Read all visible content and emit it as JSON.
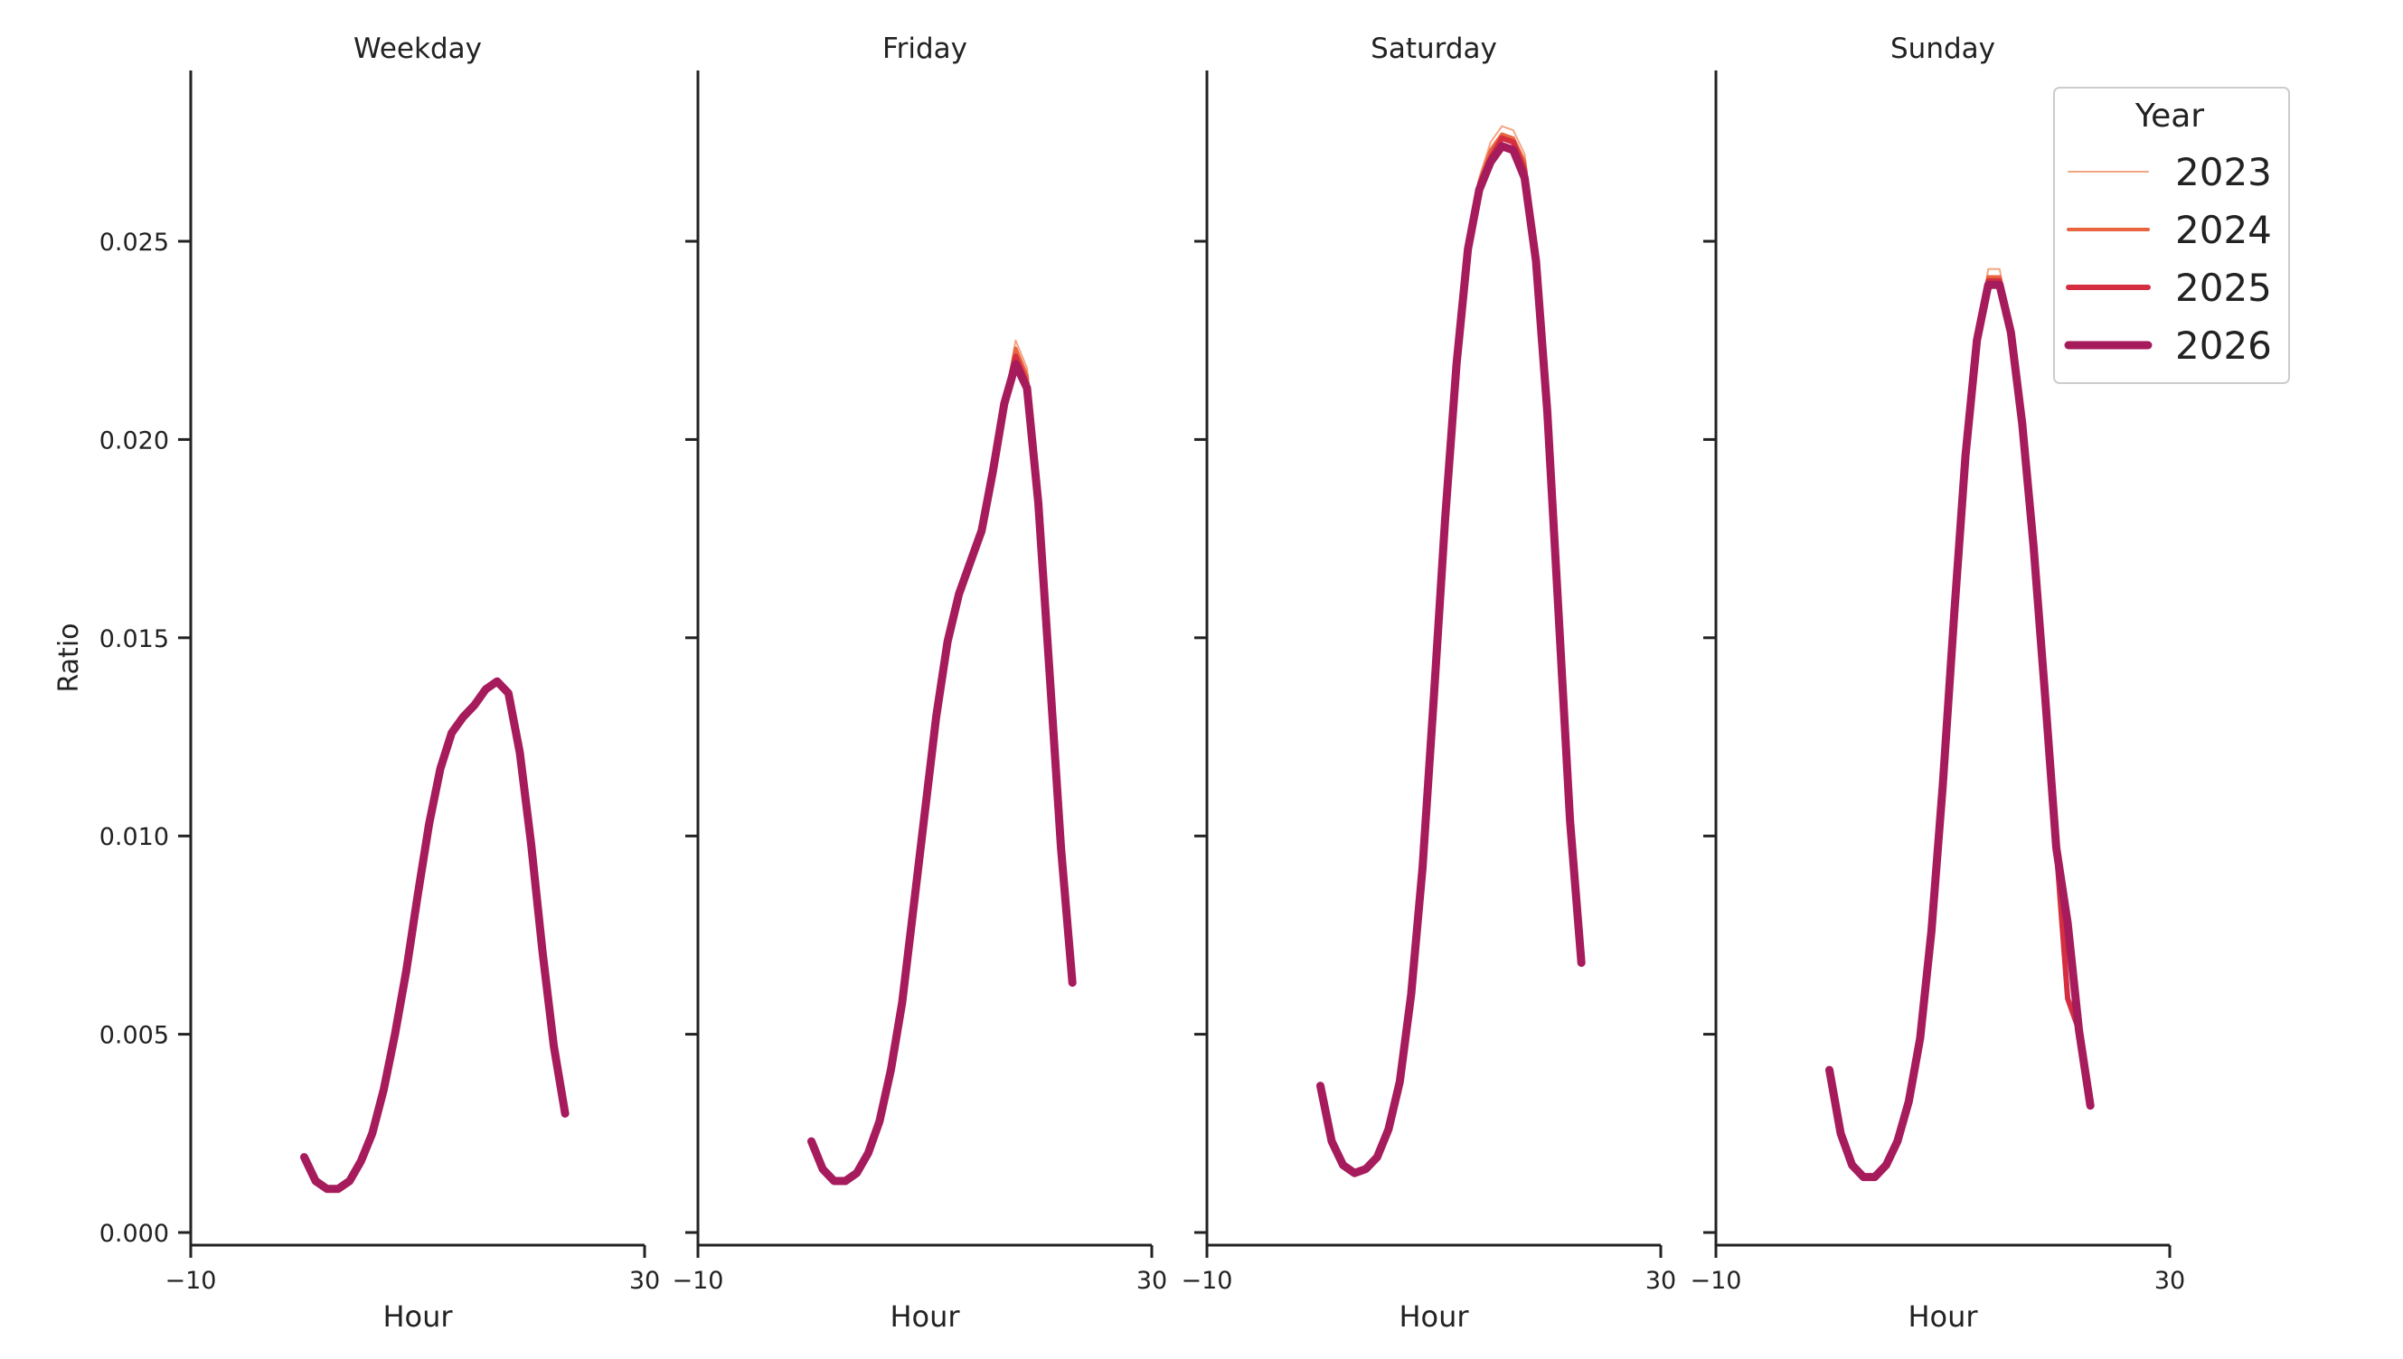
{
  "chart_data": {
    "type": "line",
    "ylabel": "Ratio",
    "xlabel": "Hour",
    "xlim": [
      -10,
      30
    ],
    "ylim": [
      -0.0003,
      0.0294
    ],
    "xticks": [
      -10,
      30
    ],
    "xtick_labels": [
      "−10",
      "30"
    ],
    "yticks": [
      0.0,
      0.005,
      0.01,
      0.015,
      0.02,
      0.025
    ],
    "ytick_labels": [
      "0.000",
      "0.005",
      "0.010",
      "0.015",
      "0.020",
      "0.025"
    ],
    "grid": false,
    "legend": {
      "title": "Year",
      "placement": "top-right",
      "entries": [
        "2023",
        "2024",
        "2025",
        "2026"
      ]
    },
    "series_styles": {
      "2023": {
        "color": "#f3a583",
        "width": 1.0
      },
      "2024": {
        "color": "#e8653f",
        "width": 2.0
      },
      "2025": {
        "color": "#d42e40",
        "width": 3.0
      },
      "2026": {
        "color": "#a61b5c",
        "width": 4.5
      }
    },
    "x": [
      0,
      1,
      2,
      3,
      4,
      5,
      6,
      7,
      8,
      9,
      10,
      11,
      12,
      13,
      14,
      15,
      16,
      17,
      18,
      19,
      20,
      21,
      22,
      23
    ],
    "panels": [
      {
        "title": "Weekday",
        "series": [
          {
            "name": "2023",
            "values": [
              0.0019,
              0.0013,
              0.0011,
              0.0011,
              0.0013,
              0.0018,
              0.0025,
              0.0036,
              0.005,
              0.0066,
              0.0085,
              0.0103,
              0.0117,
              0.0126,
              0.013,
              0.0133,
              0.0137,
              0.0139,
              0.0136,
              0.0121,
              0.0098,
              0.0071,
              0.0047,
              0.003
            ]
          },
          {
            "name": "2024",
            "values": [
              0.0019,
              0.0013,
              0.0011,
              0.0011,
              0.0013,
              0.0018,
              0.0025,
              0.0036,
              0.005,
              0.0066,
              0.0085,
              0.0103,
              0.0117,
              0.0126,
              0.013,
              0.0133,
              0.0137,
              0.0139,
              0.0136,
              0.0121,
              0.0098,
              0.0071,
              0.0047,
              0.003
            ]
          },
          {
            "name": "2025",
            "values": [
              0.0019,
              0.0013,
              0.0011,
              0.0011,
              0.0013,
              0.0018,
              0.0025,
              0.0036,
              0.005,
              0.0066,
              0.0085,
              0.0103,
              0.0117,
              0.0126,
              0.013,
              0.0133,
              0.0137,
              0.0139,
              0.0136,
              0.0121,
              0.0098,
              0.0071,
              0.0047,
              0.003
            ]
          },
          {
            "name": "2026",
            "values": [
              0.0019,
              0.0013,
              0.0011,
              0.0011,
              0.0013,
              0.0018,
              0.0025,
              0.0036,
              0.005,
              0.0066,
              0.0085,
              0.0103,
              0.0117,
              0.0126,
              0.013,
              0.0133,
              0.0137,
              0.0139,
              0.0136,
              0.0121,
              0.0098,
              0.0071,
              0.0047,
              0.003
            ]
          }
        ]
      },
      {
        "title": "Friday",
        "series": [
          {
            "name": "2023",
            "values": [
              0.0023,
              0.0016,
              0.0013,
              0.0013,
              0.0015,
              0.002,
              0.0028,
              0.0041,
              0.0058,
              0.0082,
              0.0106,
              0.013,
              0.0149,
              0.0161,
              0.0169,
              0.0177,
              0.0192,
              0.0209,
              0.0225,
              0.0218,
              0.0187,
              0.0145,
              0.0097,
              0.0063
            ]
          },
          {
            "name": "2024",
            "values": [
              0.0023,
              0.0016,
              0.0013,
              0.0013,
              0.0015,
              0.002,
              0.0028,
              0.0041,
              0.0058,
              0.0082,
              0.0106,
              0.013,
              0.0149,
              0.0161,
              0.0169,
              0.0177,
              0.0192,
              0.0209,
              0.0223,
              0.0216,
              0.0185,
              0.0143,
              0.0097,
              0.0063
            ]
          },
          {
            "name": "2025",
            "values": [
              0.0023,
              0.0016,
              0.0013,
              0.0013,
              0.0015,
              0.002,
              0.0028,
              0.0041,
              0.0058,
              0.0082,
              0.0106,
              0.013,
              0.0149,
              0.0161,
              0.0169,
              0.0177,
              0.0192,
              0.0209,
              0.0221,
              0.0214,
              0.0185,
              0.0142,
              0.0097,
              0.0063
            ]
          },
          {
            "name": "2026",
            "values": [
              0.0023,
              0.0016,
              0.0013,
              0.0013,
              0.0015,
              0.002,
              0.0028,
              0.0041,
              0.0058,
              0.0082,
              0.0106,
              0.013,
              0.0149,
              0.0161,
              0.0169,
              0.0177,
              0.0192,
              0.0209,
              0.0219,
              0.0213,
              0.0184,
              0.0141,
              0.0097,
              0.0063
            ]
          }
        ]
      },
      {
        "title": "Saturday",
        "series": [
          {
            "name": "2023",
            "values": [
              0.0037,
              0.0023,
              0.0017,
              0.0015,
              0.0016,
              0.0019,
              0.0026,
              0.0038,
              0.006,
              0.0092,
              0.0135,
              0.018,
              0.0219,
              0.0248,
              0.0266,
              0.0275,
              0.0279,
              0.0278,
              0.0272,
              0.0246,
              0.0207,
              0.0156,
              0.0104,
              0.0068
            ]
          },
          {
            "name": "2024",
            "values": [
              0.0037,
              0.0023,
              0.0017,
              0.0015,
              0.0016,
              0.0019,
              0.0026,
              0.0038,
              0.006,
              0.0092,
              0.0135,
              0.018,
              0.0219,
              0.0248,
              0.0265,
              0.0273,
              0.0277,
              0.0276,
              0.027,
              0.0246,
              0.0207,
              0.0156,
              0.0104,
              0.0068
            ]
          },
          {
            "name": "2025",
            "values": [
              0.0037,
              0.0023,
              0.0017,
              0.0015,
              0.0016,
              0.0019,
              0.0026,
              0.0038,
              0.006,
              0.0092,
              0.0135,
              0.018,
              0.0219,
              0.0248,
              0.0264,
              0.0271,
              0.0276,
              0.0275,
              0.0268,
              0.0246,
              0.0207,
              0.0156,
              0.0104,
              0.0068
            ]
          },
          {
            "name": "2026",
            "values": [
              0.0037,
              0.0023,
              0.0017,
              0.0015,
              0.0016,
              0.0019,
              0.0026,
              0.0038,
              0.006,
              0.0092,
              0.0135,
              0.018,
              0.0219,
              0.0248,
              0.0263,
              0.027,
              0.0274,
              0.0273,
              0.0266,
              0.0245,
              0.0207,
              0.0156,
              0.0104,
              0.0068
            ]
          }
        ]
      },
      {
        "title": "Sunday",
        "series": [
          {
            "name": "2023",
            "values": [
              0.0041,
              0.0025,
              0.0017,
              0.0014,
              0.0014,
              0.0017,
              0.0023,
              0.0033,
              0.0049,
              0.0076,
              0.0113,
              0.0156,
              0.0196,
              0.0225,
              0.0243,
              0.0243,
              0.0228,
              0.0205,
              0.0174,
              0.0137,
              0.0097,
              0.0059,
              0.0051,
              0.0032
            ]
          },
          {
            "name": "2024",
            "values": [
              0.0041,
              0.0025,
              0.0017,
              0.0014,
              0.0014,
              0.0017,
              0.0023,
              0.0033,
              0.0049,
              0.0076,
              0.0113,
              0.0156,
              0.0196,
              0.0225,
              0.0241,
              0.0241,
              0.0228,
              0.0205,
              0.0174,
              0.0137,
              0.0097,
              0.0059,
              0.0051,
              0.0032
            ]
          },
          {
            "name": "2025",
            "values": [
              0.0041,
              0.0025,
              0.0017,
              0.0014,
              0.0014,
              0.0017,
              0.0023,
              0.0033,
              0.0049,
              0.0076,
              0.0113,
              0.0156,
              0.0196,
              0.0225,
              0.024,
              0.024,
              0.0228,
              0.0205,
              0.0174,
              0.0137,
              0.0097,
              0.0059,
              0.0051,
              0.0032
            ]
          },
          {
            "name": "2026",
            "values": [
              0.0041,
              0.0025,
              0.0017,
              0.0014,
              0.0014,
              0.0017,
              0.0023,
              0.0033,
              0.0049,
              0.0076,
              0.0113,
              0.0156,
              0.0196,
              0.0225,
              0.0239,
              0.0239,
              0.0227,
              0.0204,
              0.0173,
              0.0136,
              0.0097,
              0.0078,
              0.0051,
              0.0032
            ]
          }
        ]
      }
    ]
  }
}
